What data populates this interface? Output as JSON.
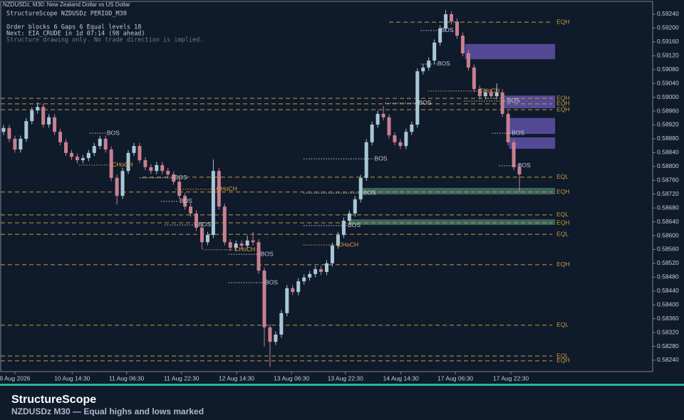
{
  "chart_data": {
    "type": "candlestick",
    "symbol_title": "NZDUSDz, M30:  New Zealand Dollar vs US Dollar",
    "info": [
      "StructureScope  NZDUSDz PERIOD_M30",
      "Order blocks 6   Gaps 6   Equal levels 18",
      "Next: EIA_CRUDE in 1d 07:14   (98 ahead)"
    ],
    "note": "Structure drawing only. No trade direction is implied.",
    "footer_title": "StructureScope",
    "footer_subtitle": "NZDUSDz  M30  —  Equal highs and lows marked",
    "up_color": "#a9c7d6",
    "down_color": "#c9808f",
    "ylim": [
      0.58207,
      0.59277
    ],
    "yticks": [
      {
        "value": 0.5924,
        "label": "0.59240"
      },
      {
        "value": 0.592,
        "label": "0.59200"
      },
      {
        "value": 0.5916,
        "label": "0.59160"
      },
      {
        "value": 0.5912,
        "label": "0.59120"
      },
      {
        "value": 0.5908,
        "label": "0.59080"
      },
      {
        "value": 0.5904,
        "label": "0.59040"
      },
      {
        "value": 0.59,
        "label": "0.59000"
      },
      {
        "value": 0.5896,
        "label": "0.58960"
      },
      {
        "value": 0.5892,
        "label": "0.58920"
      },
      {
        "value": 0.5888,
        "label": "0.58880"
      },
      {
        "value": 0.5884,
        "label": "0.58840"
      },
      {
        "value": 0.588,
        "label": "0.58800"
      },
      {
        "value": 0.5876,
        "label": "0.58760"
      },
      {
        "value": 0.5872,
        "label": "0.58720"
      },
      {
        "value": 0.5868,
        "label": "0.58680"
      },
      {
        "value": 0.5864,
        "label": "0.58640"
      },
      {
        "value": 0.586,
        "label": "0.58600"
      },
      {
        "value": 0.5856,
        "label": "0.58560"
      },
      {
        "value": 0.5852,
        "label": "0.58520"
      },
      {
        "value": 0.5848,
        "label": "0.58480"
      },
      {
        "value": 0.5844,
        "label": "0.58440"
      },
      {
        "value": 0.584,
        "label": "0.58400"
      },
      {
        "value": 0.5836,
        "label": "0.58360"
      },
      {
        "value": 0.5832,
        "label": "0.58320"
      },
      {
        "value": 0.5828,
        "label": "0.58280"
      },
      {
        "value": 0.5824,
        "label": "0.58240"
      }
    ],
    "xlim": [
      0,
      115
    ],
    "xticks": [
      {
        "value": 2.5,
        "label": "9 Aug 2026"
      },
      {
        "value": 12.6,
        "label": "10 Aug 14:30"
      },
      {
        "value": 22.2,
        "label": "11 Aug 06:30"
      },
      {
        "value": 31.9,
        "label": "11 Aug 22:30"
      },
      {
        "value": 41.6,
        "label": "12 Aug 14:30"
      },
      {
        "value": 51.3,
        "label": "13 Aug 06:30"
      },
      {
        "value": 60.8,
        "label": "13 Aug 22:30"
      },
      {
        "value": 70.6,
        "label": "14 Aug 14:30"
      },
      {
        "value": 80.2,
        "label": "17 Aug 06:30"
      },
      {
        "value": 90.0,
        "label": "17 Aug 22:30"
      }
    ],
    "open": [
      0.589,
      0.58911,
      0.5888,
      0.58849,
      0.5888,
      0.58931,
      0.58962,
      0.58972,
      0.58921,
      0.58942,
      0.589,
      0.5887,
      0.58839,
      0.58828,
      0.58818,
      0.58824,
      0.58839,
      0.58859,
      0.5888,
      0.58849,
      0.58767,
      0.58715,
      0.58787,
      0.58839,
      0.58859,
      0.58818,
      0.58798,
      0.58787,
      0.58804,
      0.58787,
      0.58777,
      0.58756,
      0.58715,
      0.58684,
      0.58664,
      0.58623,
      0.58581,
      0.58602,
      0.58787,
      0.58684,
      0.58581,
      0.58565,
      0.58577,
      0.58571,
      0.58586,
      0.58581,
      0.58499,
      0.58335,
      0.58293,
      0.58314,
      0.58376,
      0.58448,
      0.58437,
      0.58468,
      0.58479,
      0.58489,
      0.58503,
      0.58495,
      0.5852,
      0.58571,
      0.58602,
      0.58643,
      0.58664,
      0.58705,
      0.58767,
      0.5887,
      0.58921,
      0.58952,
      0.58942,
      0.5889,
      0.5887,
      0.58859,
      0.589,
      0.58921,
      0.59075,
      0.59086,
      0.59106,
      0.59158,
      0.59199,
      0.5924,
      0.59219,
      0.59178,
      0.59127,
      0.59086,
      0.59024,
      0.59003,
      0.59014,
      0.59003,
      0.59014,
      0.58952,
      0.5887,
      0.58798
    ],
    "high": [
      0.5892,
      0.5892,
      0.58889,
      0.58889,
      0.5894,
      0.58971,
      0.58985,
      0.58981,
      0.58951,
      0.58951,
      0.58909,
      0.58879,
      0.58848,
      0.58837,
      0.58833,
      0.58848,
      0.58868,
      0.58889,
      0.58889,
      0.58858,
      0.58776,
      0.58796,
      0.58848,
      0.58868,
      0.58868,
      0.58827,
      0.58807,
      0.58813,
      0.58813,
      0.58796,
      0.58786,
      0.58765,
      0.58724,
      0.58693,
      0.58673,
      0.58632,
      0.58611,
      0.5882,
      0.58796,
      0.58693,
      0.5859,
      0.58586,
      0.58586,
      0.586,
      0.5861,
      0.5859,
      0.58508,
      0.58344,
      0.58323,
      0.58385,
      0.58457,
      0.58457,
      0.58477,
      0.58488,
      0.58498,
      0.58512,
      0.58512,
      0.58529,
      0.5858,
      0.58611,
      0.58652,
      0.58673,
      0.58714,
      0.58776,
      0.58879,
      0.5893,
      0.58961,
      0.58975,
      0.58951,
      0.58899,
      0.58879,
      0.58909,
      0.5893,
      0.59084,
      0.59095,
      0.59115,
      0.59167,
      0.59208,
      0.59252,
      0.59249,
      0.59228,
      0.59187,
      0.59136,
      0.59095,
      0.59033,
      0.59023,
      0.59023,
      0.5904,
      0.59023,
      0.58961,
      0.58879,
      0.58807
    ],
    "low": [
      0.58891,
      0.58871,
      0.5884,
      0.5884,
      0.58871,
      0.58922,
      0.58953,
      0.58912,
      0.58912,
      0.58891,
      0.58861,
      0.5883,
      0.58819,
      0.58809,
      0.58809,
      0.58815,
      0.5883,
      0.5885,
      0.5884,
      0.58758,
      0.5869,
      0.58706,
      0.58778,
      0.5883,
      0.58809,
      0.58789,
      0.58778,
      0.58778,
      0.58778,
      0.58768,
      0.58747,
      0.58706,
      0.58675,
      0.58655,
      0.58614,
      0.5856,
      0.58572,
      0.58593,
      0.58675,
      0.58572,
      0.58556,
      0.58556,
      0.58562,
      0.58562,
      0.58572,
      0.5849,
      0.5828,
      0.58221,
      0.58284,
      0.58305,
      0.58367,
      0.58428,
      0.58428,
      0.58459,
      0.5847,
      0.5848,
      0.58486,
      0.58486,
      0.58511,
      0.58562,
      0.58593,
      0.58634,
      0.58655,
      0.58696,
      0.58758,
      0.58861,
      0.58912,
      0.58933,
      0.58881,
      0.58861,
      0.5885,
      0.5885,
      0.58891,
      0.58912,
      0.59066,
      0.59077,
      0.59097,
      0.59149,
      0.5919,
      0.5921,
      0.59169,
      0.59118,
      0.59077,
      0.59015,
      0.58994,
      0.58994,
      0.58994,
      0.58994,
      0.58943,
      0.58861,
      0.58789,
      0.58726
    ],
    "close": [
      0.58911,
      0.5888,
      0.58849,
      0.5888,
      0.58931,
      0.58962,
      0.58972,
      0.58921,
      0.58942,
      0.589,
      0.5887,
      0.58839,
      0.58828,
      0.58818,
      0.58824,
      0.58839,
      0.58859,
      0.5888,
      0.58849,
      0.58767,
      0.58715,
      0.58787,
      0.58839,
      0.58859,
      0.58818,
      0.58798,
      0.58787,
      0.58804,
      0.58787,
      0.58777,
      0.58756,
      0.58715,
      0.58684,
      0.58664,
      0.58623,
      0.58581,
      0.58602,
      0.58787,
      0.58684,
      0.58581,
      0.58565,
      0.58577,
      0.58571,
      0.58586,
      0.58581,
      0.58499,
      0.58335,
      0.58293,
      0.58314,
      0.58376,
      0.58448,
      0.58437,
      0.58468,
      0.58479,
      0.58489,
      0.58503,
      0.58495,
      0.5852,
      0.58571,
      0.58602,
      0.58643,
      0.58664,
      0.58705,
      0.58767,
      0.5887,
      0.58921,
      0.58952,
      0.58942,
      0.5889,
      0.5887,
      0.58859,
      0.589,
      0.58921,
      0.59075,
      0.59086,
      0.59106,
      0.59158,
      0.59199,
      0.5924,
      0.59219,
      0.59178,
      0.59127,
      0.59086,
      0.59024,
      0.59003,
      0.59014,
      0.59003,
      0.59014,
      0.58952,
      0.5887,
      0.58798,
      0.58777
    ],
    "level_color": "#c99a3a",
    "levels": [
      {
        "label": "EQH",
        "price": 0.59217,
        "x0": 68.5,
        "x1": 97.3
      },
      {
        "label": "EQH",
        "price": 0.58997,
        "x0": 0,
        "x1": 97.3
      },
      {
        "label": "EQH",
        "price": 0.58981,
        "x0": 0,
        "x1": 97.3
      },
      {
        "label": "EQH",
        "price": 0.58964,
        "x0": 0,
        "x1": 97.3
      },
      {
        "label": "EQL",
        "price": 0.58769,
        "x0": 25,
        "x1": 97.3
      },
      {
        "label": "EQH",
        "price": 0.58726,
        "x0": 0,
        "x1": 97.3
      },
      {
        "label": "EQL",
        "price": 0.5866,
        "x0": 0,
        "x1": 97.3
      },
      {
        "label": "EQH",
        "price": 0.58637,
        "x0": 0,
        "x1": 97.3
      },
      {
        "label": "EQL",
        "price": 0.58604,
        "x0": 0,
        "x1": 97.3
      },
      {
        "label": "EQH",
        "price": 0.58516,
        "x0": 0,
        "x1": 97.3
      },
      {
        "label": "EQL",
        "price": 0.58341,
        "x0": 0,
        "x1": 97.3
      },
      {
        "label": "EQL",
        "price": 0.58252,
        "x0": 0,
        "x1": 97.3
      },
      {
        "label": "EQH",
        "price": 0.58238,
        "x0": 0,
        "x1": 97.3
      }
    ],
    "order_block_color": "#5b4fa0",
    "order_blocks": [
      {
        "x0": 81.9,
        "x1": 97.8,
        "top": 0.59154,
        "bottom": 0.5911
      },
      {
        "x0": 88.7,
        "x1": 97.8,
        "top": 0.59005,
        "bottom": 0.58968
      },
      {
        "x0": 89.2,
        "x1": 97.8,
        "top": 0.5894,
        "bottom": 0.58894
      },
      {
        "x0": 89.7,
        "x1": 97.8,
        "top": 0.58884,
        "bottom": 0.58851
      }
    ],
    "gap_color": "#3f6b63",
    "gaps": [
      {
        "x0": 63.4,
        "x1": 97.8,
        "top": 0.58738,
        "bottom": 0.58719
      },
      {
        "x0": 61.5,
        "x1": 97.8,
        "top": 0.58647,
        "bottom": 0.58631
      }
    ],
    "structure": [
      {
        "label": "BOS",
        "color": "#c8ccd4",
        "x0": 15.7,
        "x1": 18.6,
        "price": 0.58896
      },
      {
        "label": "CHoCH",
        "color": "#e8a33c",
        "x0": 13.8,
        "x1": 19.5,
        "price": 0.58804
      },
      {
        "label": "BOS",
        "color": "#c8ccd4",
        "x0": 24.5,
        "x1": 30.5,
        "price": 0.58767
      },
      {
        "label": "CHoCH",
        "color": "#e8a33c",
        "x0": 30.8,
        "x1": 37.9,
        "price": 0.58734
      },
      {
        "label": "BOS",
        "color": "#c8ccd4",
        "x0": 28.3,
        "x1": 31.4,
        "price": 0.58699
      },
      {
        "label": "BOS",
        "color": "#c8ccd4",
        "x0": 28.9,
        "x1": 34.7,
        "price": 0.58631
      },
      {
        "label": "CHoCH",
        "color": "#e8a33c",
        "x0": 35.8,
        "x1": 41.1,
        "price": 0.58559
      },
      {
        "label": "BOS",
        "color": "#c8ccd4",
        "x0": 40.2,
        "x1": 45.7,
        "price": 0.58546
      },
      {
        "label": "BOS",
        "color": "#c8ccd4",
        "x0": 40.2,
        "x1": 46.5,
        "price": 0.58464
      },
      {
        "label": "CHoCH",
        "color": "#e8a33c",
        "x0": 53.4,
        "x1": 59.3,
        "price": 0.58573
      },
      {
        "label": "BOS",
        "color": "#c8ccd4",
        "x0": 53.4,
        "x1": 61.1,
        "price": 0.58629
      },
      {
        "label": "BOS",
        "color": "#c8ccd4",
        "x0": 53.4,
        "x1": 63.8,
        "price": 0.58723
      },
      {
        "label": "BOS",
        "color": "#c8ccd4",
        "x0": 53.4,
        "x1": 65.8,
        "price": 0.58822
      },
      {
        "label": "BOS",
        "color": "#c8ccd4",
        "x0": 67.8,
        "x1": 73.6,
        "price": 0.58983
      },
      {
        "label": "BOS",
        "color": "#c8ccd4",
        "x0": 74.1,
        "x1": 76.9,
        "price": 0.59096
      },
      {
        "label": "BOS",
        "color": "#c8ccd4",
        "x0": 74.1,
        "x1": 77.5,
        "price": 0.59193
      },
      {
        "label": "CHoCH",
        "color": "#e8a33c",
        "x0": 75.4,
        "x1": 84.2,
        "price": 0.59018
      },
      {
        "label": "BOS",
        "color": "#c8ccd4",
        "x0": 81.7,
        "x1": 89.2,
        "price": 0.58989
      },
      {
        "label": "BOS",
        "color": "#c8ccd4",
        "x0": 86.7,
        "x1": 90.0,
        "price": 0.58896
      },
      {
        "label": "BOS",
        "color": "#c8ccd4",
        "x0": 87.9,
        "x1": 91.1,
        "price": 0.58802
      }
    ]
  }
}
